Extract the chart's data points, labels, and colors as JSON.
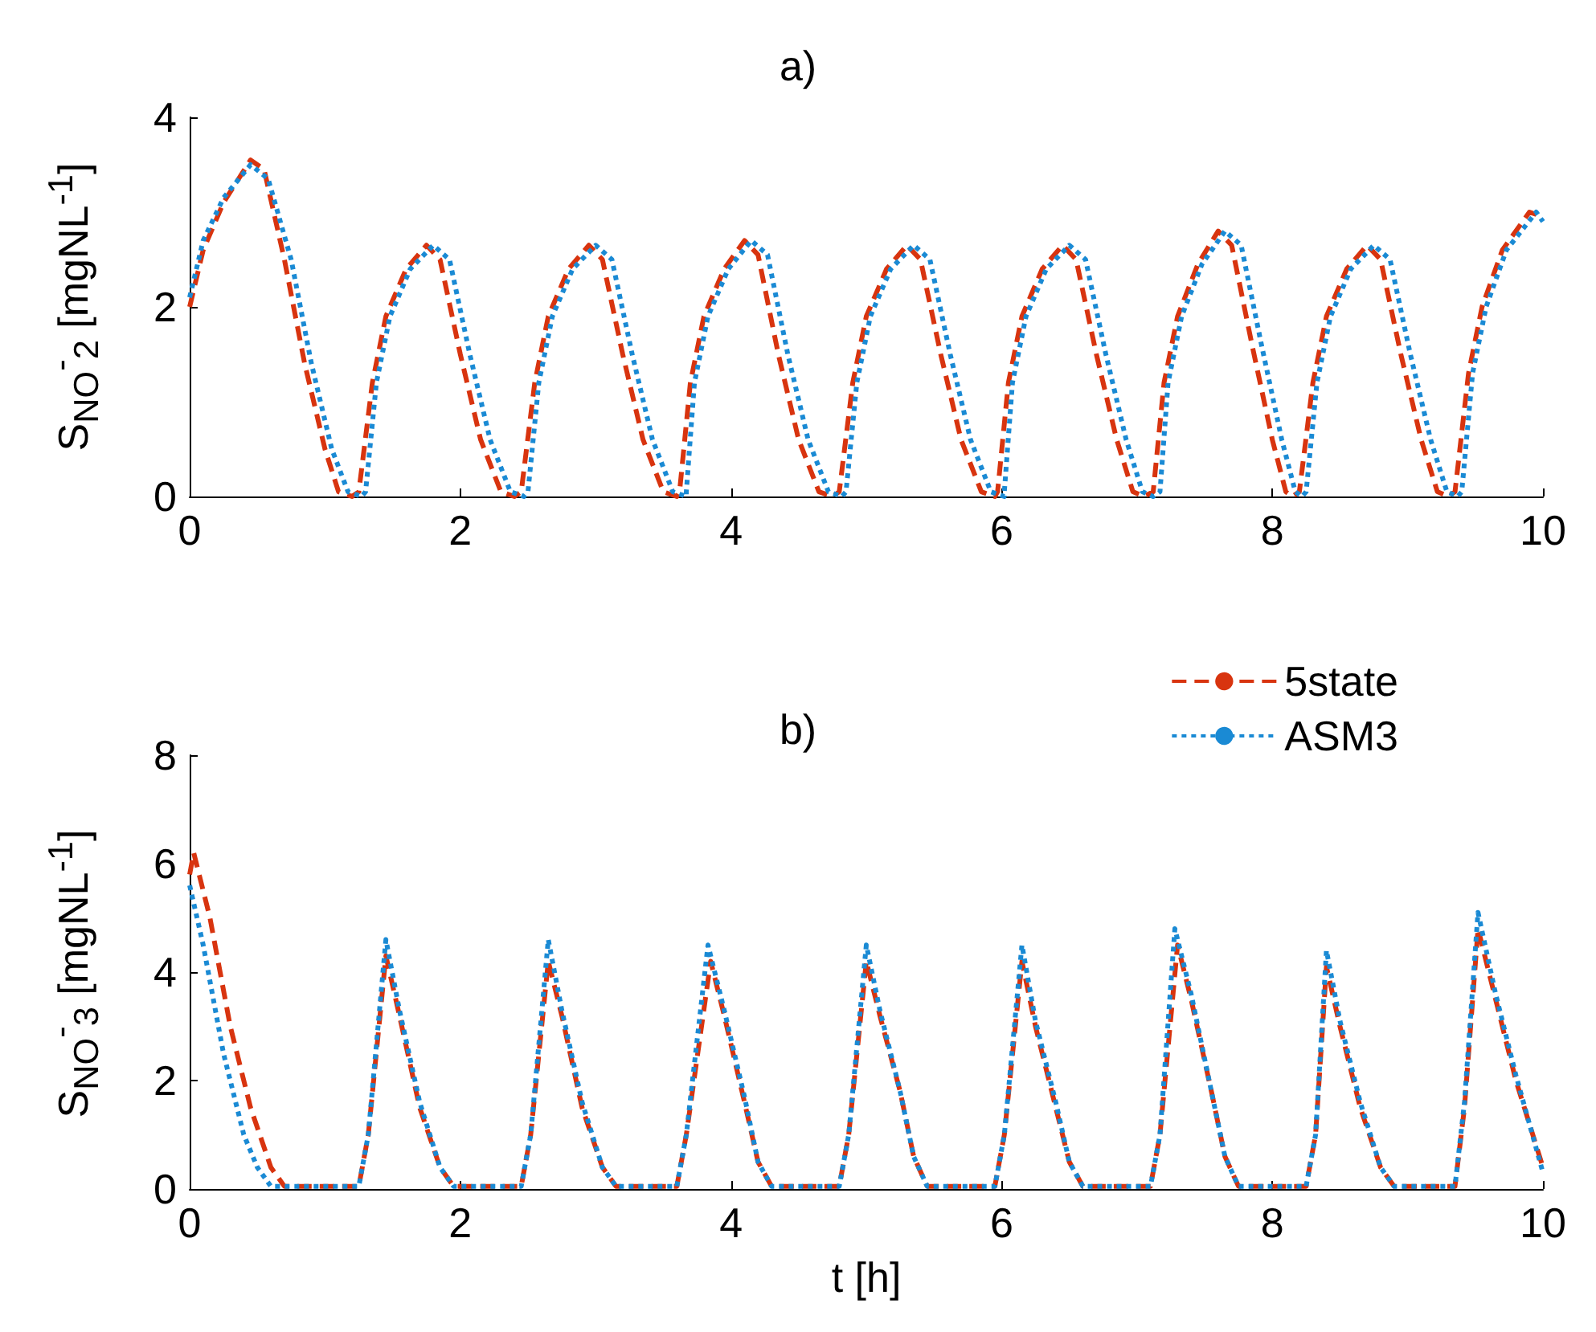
{
  "chart_data": [
    {
      "type": "line",
      "title": "a)",
      "ylabel": "S$_{NO}$$^{-}$$_{2}$ [mgNL$^{-1}$]",
      "xlim": [
        0,
        10
      ],
      "xticks": [
        0,
        2,
        4,
        6,
        8,
        10
      ],
      "ylim": [
        0,
        4
      ],
      "yticks": [
        0,
        2,
        4
      ],
      "grid": false,
      "legend": false,
      "marker": "none",
      "series": [
        {
          "color": "#d8340f",
          "line_style": "dashed",
          "x": [
            0,
            0.1,
            0.25,
            0.45,
            0.55,
            0.7,
            0.85,
            1.0,
            1.1,
            1.2,
            1.25,
            1.35,
            1.45,
            1.6,
            1.75,
            1.85,
            2.0,
            2.15,
            2.3,
            2.4,
            2.45,
            2.55,
            2.65,
            2.8,
            2.95,
            3.05,
            3.2,
            3.35,
            3.5,
            3.6,
            3.62,
            3.7,
            3.8,
            3.95,
            4.1,
            4.2,
            4.35,
            4.5,
            4.65,
            4.75,
            4.8,
            4.9,
            5.0,
            5.15,
            5.3,
            5.4,
            5.55,
            5.7,
            5.85,
            5.95,
            5.97,
            6.05,
            6.15,
            6.3,
            6.45,
            6.55,
            6.7,
            6.85,
            6.97,
            7.05,
            7.12,
            7.2,
            7.3,
            7.45,
            7.6,
            7.7,
            7.85,
            8.0,
            8.1,
            8.15,
            8.2,
            8.3,
            8.4,
            8.55,
            8.7,
            8.8,
            8.95,
            9.1,
            9.22,
            9.3,
            9.35,
            9.45,
            9.55,
            9.7,
            9.9,
            10
          ],
          "values": [
            2.0,
            2.6,
            3.1,
            3.55,
            3.45,
            2.5,
            1.4,
            0.5,
            0.05,
            0,
            0.05,
            1.2,
            1.9,
            2.4,
            2.65,
            2.5,
            1.5,
            0.6,
            0.05,
            0,
            0.05,
            1.2,
            1.9,
            2.4,
            2.65,
            2.5,
            1.5,
            0.6,
            0.05,
            0,
            0.05,
            1.2,
            1.9,
            2.4,
            2.7,
            2.55,
            1.5,
            0.6,
            0.05,
            0,
            0.05,
            1.2,
            1.9,
            2.4,
            2.65,
            2.5,
            1.5,
            0.6,
            0.05,
            0,
            0.05,
            1.2,
            1.9,
            2.4,
            2.65,
            2.5,
            1.5,
            0.6,
            0.05,
            0,
            0.05,
            1.2,
            1.9,
            2.45,
            2.8,
            2.65,
            1.6,
            0.6,
            0.05,
            0,
            0.05,
            1.2,
            1.9,
            2.4,
            2.65,
            2.5,
            1.5,
            0.6,
            0.05,
            0,
            0.05,
            1.3,
            2.0,
            2.6,
            3.0,
            2.95
          ]
        },
        {
          "color": "#1a8ad4",
          "line_style": "dotted",
          "x": [
            0,
            0.1,
            0.25,
            0.45,
            0.58,
            0.75,
            0.9,
            1.05,
            1.17,
            1.27,
            1.3,
            1.38,
            1.48,
            1.63,
            1.8,
            1.92,
            2.07,
            2.22,
            2.37,
            2.47,
            2.5,
            2.58,
            2.68,
            2.83,
            3.0,
            3.12,
            3.27,
            3.42,
            3.57,
            3.67,
            3.67,
            3.73,
            3.83,
            3.98,
            4.15,
            4.27,
            4.42,
            4.57,
            4.72,
            4.82,
            4.85,
            4.93,
            5.03,
            5.18,
            5.35,
            5.47,
            5.62,
            5.77,
            5.92,
            6.02,
            6.02,
            6.08,
            6.18,
            6.33,
            6.5,
            6.62,
            6.77,
            6.92,
            7.04,
            7.12,
            7.17,
            7.23,
            7.33,
            7.48,
            7.65,
            7.77,
            7.92,
            8.07,
            8.17,
            8.22,
            8.25,
            8.33,
            8.43,
            8.58,
            8.75,
            8.87,
            9.02,
            9.17,
            9.29,
            9.37,
            9.4,
            9.48,
            9.58,
            9.73,
            9.95,
            10
          ],
          "values": [
            2.1,
            2.7,
            3.15,
            3.5,
            3.35,
            2.5,
            1.4,
            0.5,
            0.05,
            0,
            0.05,
            1.2,
            1.9,
            2.4,
            2.65,
            2.5,
            1.5,
            0.6,
            0.05,
            0,
            0.05,
            1.2,
            1.9,
            2.4,
            2.65,
            2.5,
            1.5,
            0.6,
            0.05,
            0,
            0.05,
            1.2,
            1.9,
            2.4,
            2.7,
            2.55,
            1.5,
            0.6,
            0.05,
            0,
            0.05,
            1.2,
            1.9,
            2.4,
            2.65,
            2.5,
            1.5,
            0.6,
            0.05,
            0,
            0.05,
            1.2,
            1.9,
            2.4,
            2.65,
            2.5,
            1.5,
            0.6,
            0.05,
            0,
            0.05,
            1.2,
            1.9,
            2.45,
            2.8,
            2.65,
            1.6,
            0.6,
            0.05,
            0,
            0.05,
            1.2,
            1.9,
            2.4,
            2.65,
            2.5,
            1.5,
            0.6,
            0.05,
            0,
            0.05,
            1.3,
            2.0,
            2.6,
            3.0,
            2.9
          ]
        }
      ]
    },
    {
      "type": "line",
      "title": "b)",
      "xlabel": "t [h]",
      "ylabel": "S$_{NO}$$^{-}$$_{3}$ [mgNL$^{-1}$]",
      "xlim": [
        0,
        10
      ],
      "xticks": [
        0,
        2,
        4,
        6,
        8,
        10
      ],
      "ylim": [
        0,
        8
      ],
      "yticks": [
        0,
        2,
        4,
        6,
        8
      ],
      "grid": false,
      "legend": "top right",
      "marker": "none",
      "series": [
        {
          "name": "5state",
          "color": "#d8340f",
          "line_style": "dashed",
          "x": [
            0,
            0.03,
            0.15,
            0.3,
            0.45,
            0.6,
            0.7,
            1.25,
            1.32,
            1.45,
            1.55,
            1.7,
            1.85,
            1.95,
            2.45,
            2.52,
            2.65,
            2.75,
            2.9,
            3.05,
            3.15,
            3.6,
            3.67,
            3.85,
            3.95,
            4.1,
            4.2,
            4.3,
            4.8,
            4.87,
            5.0,
            5.1,
            5.25,
            5.35,
            5.45,
            5.95,
            6.02,
            6.15,
            6.25,
            6.4,
            6.5,
            6.6,
            7.1,
            7.17,
            7.3,
            7.4,
            7.55,
            7.65,
            7.75,
            8.25,
            8.32,
            8.4,
            8.5,
            8.65,
            8.8,
            8.9,
            9.35,
            9.42,
            9.52,
            9.65,
            9.8,
            9.9,
            10
          ],
          "values": [
            5.8,
            6.2,
            5.0,
            3.0,
            1.5,
            0.4,
            0.05,
            0.05,
            1.0,
            4.3,
            3.2,
            1.5,
            0.4,
            0.05,
            0.05,
            1.0,
            4.2,
            3.2,
            1.5,
            0.4,
            0.05,
            0.05,
            1.0,
            4.2,
            3.2,
            1.6,
            0.5,
            0.05,
            0.05,
            1.0,
            4.2,
            3.2,
            1.8,
            0.6,
            0.05,
            0.05,
            1.0,
            4.2,
            3.0,
            1.5,
            0.5,
            0.05,
            0.05,
            1.0,
            4.5,
            3.5,
            1.8,
            0.6,
            0.05,
            0.05,
            1.0,
            4.1,
            3.0,
            1.5,
            0.4,
            0.05,
            0.05,
            1.5,
            4.8,
            3.5,
            2.0,
            1.2,
            0.4
          ]
        },
        {
          "name": "ASM3",
          "color": "#1a8ad4",
          "line_style": "dotted",
          "x": [
            0,
            0.1,
            0.25,
            0.4,
            0.5,
            0.6,
            1.25,
            1.32,
            1.45,
            1.55,
            1.7,
            1.85,
            1.95,
            2.45,
            2.52,
            2.65,
            2.75,
            2.9,
            3.05,
            3.15,
            3.6,
            3.67,
            3.83,
            3.95,
            4.1,
            4.2,
            4.3,
            4.8,
            4.87,
            5.0,
            5.1,
            5.25,
            5.35,
            5.45,
            5.95,
            6.02,
            6.15,
            6.25,
            6.4,
            6.5,
            6.6,
            7.1,
            7.17,
            7.28,
            7.4,
            7.55,
            7.65,
            7.75,
            8.25,
            8.32,
            8.4,
            8.5,
            8.65,
            8.8,
            8.9,
            9.35,
            9.42,
            9.52,
            9.65,
            9.8,
            9.9,
            10
          ],
          "values": [
            5.6,
            4.5,
            2.5,
            1.0,
            0.4,
            0.05,
            0.05,
            1.0,
            4.6,
            3.3,
            1.6,
            0.4,
            0.05,
            0.05,
            1.0,
            4.6,
            3.3,
            1.6,
            0.4,
            0.05,
            0.05,
            1.0,
            4.5,
            3.3,
            1.7,
            0.5,
            0.05,
            0.05,
            1.0,
            4.5,
            3.3,
            1.8,
            0.6,
            0.05,
            0.05,
            1.0,
            4.5,
            3.1,
            1.6,
            0.5,
            0.05,
            0.05,
            1.0,
            4.8,
            3.6,
            1.8,
            0.6,
            0.05,
            0.05,
            1.0,
            4.4,
            3.1,
            1.6,
            0.4,
            0.05,
            0.05,
            1.6,
            5.1,
            3.6,
            2.1,
            1.2,
            0.3
          ]
        }
      ]
    }
  ]
}
